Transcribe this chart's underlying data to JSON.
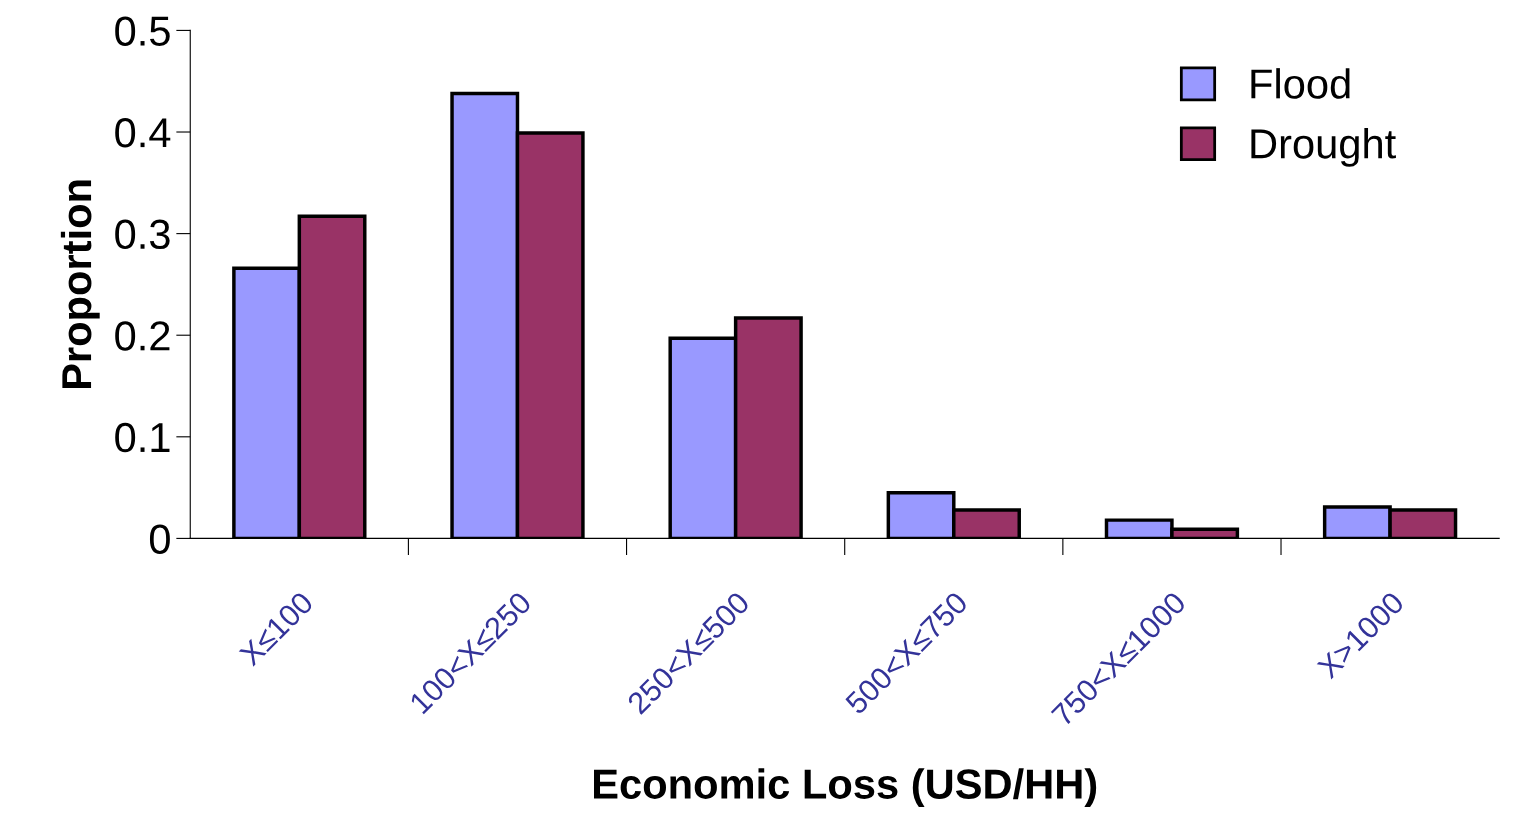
{
  "chart_data": {
    "type": "bar",
    "xlabel": "Economic Loss (USD/HH)",
    "ylabel": "Proportion",
    "categories": [
      "X≤100",
      "100<X≤250",
      "250<X≤500",
      "500<X≤750",
      "750<X≤1000",
      "X>1000"
    ],
    "series": [
      {
        "name": "Flood",
        "color": "#9999ff",
        "values": [
          0.266,
          0.438,
          0.197,
          0.045,
          0.018,
          0.031
        ]
      },
      {
        "name": "Drought",
        "color": "#993366",
        "values": [
          0.317,
          0.399,
          0.217,
          0.028,
          0.009,
          0.028
        ]
      }
    ],
    "ylim": [
      0,
      0.5
    ],
    "yticks": [
      {
        "value": 0,
        "label": "0"
      },
      0.1,
      0.2,
      0.3,
      0.4,
      0.5
    ],
    "legend": "top right",
    "grid": false
  }
}
